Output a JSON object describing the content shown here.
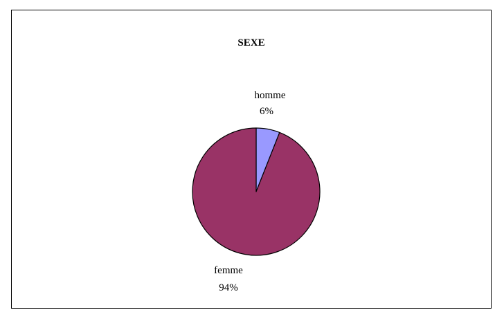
{
  "chart_data": {
    "type": "pie",
    "title": "SEXE",
    "slices": [
      {
        "label": "homme",
        "value": 6,
        "percent_label": "6%",
        "color": "#9999ff"
      },
      {
        "label": "femme",
        "value": 94,
        "percent_label": "94%",
        "color": "#993366"
      }
    ],
    "start_angle": "top",
    "direction": "clockwise",
    "border_color": "#000000"
  }
}
